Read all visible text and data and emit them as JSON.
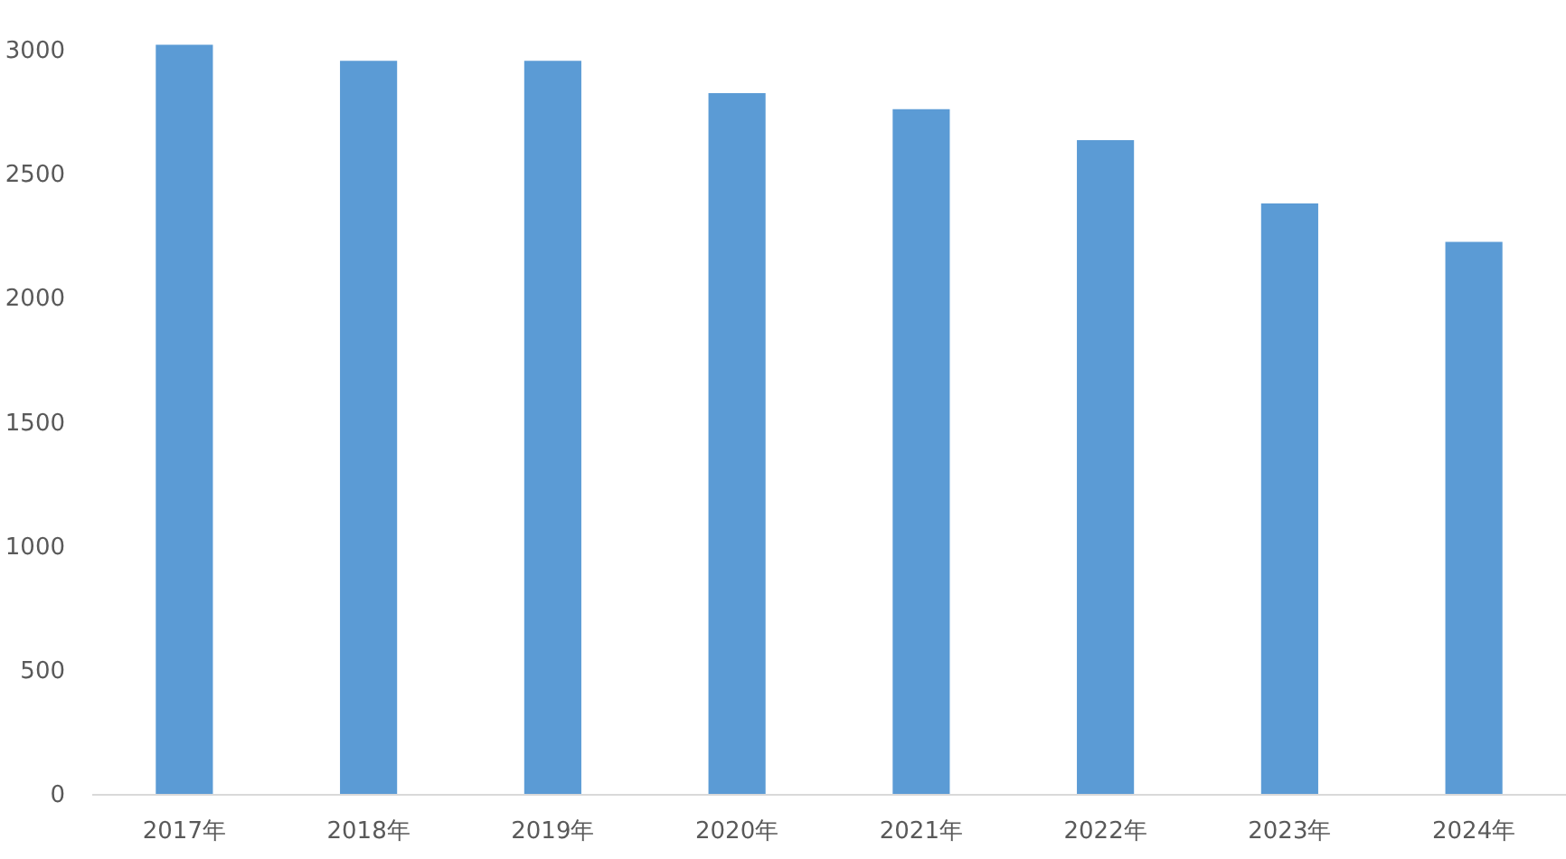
{
  "chart_data": {
    "type": "bar",
    "categories": [
      "2017年",
      "2018年",
      "2019年",
      "2020年",
      "2021年",
      "2022年",
      "2023年",
      "2024年"
    ],
    "values": [
      3020,
      2955,
      2955,
      2825,
      2760,
      2635,
      2380,
      2225
    ],
    "color": "#5b9bd5",
    "ylim": [
      0,
      3200
    ],
    "yticks": [
      0,
      500,
      1000,
      1500,
      2000,
      2500,
      3000
    ]
  }
}
